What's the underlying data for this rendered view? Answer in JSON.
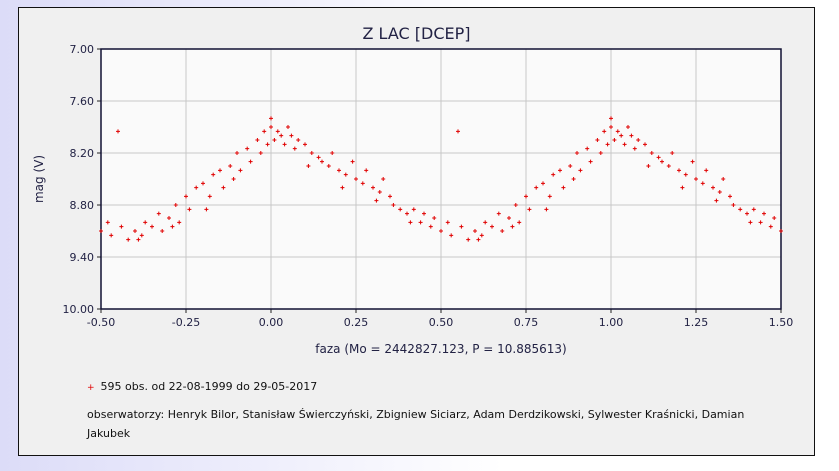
{
  "chart_data": {
    "type": "scatter",
    "title": "Z LAC [DCEP]",
    "xlabel": "faza (Mo = 2442827.123, P = 10.885613)",
    "ylabel": "mag (V)",
    "xlim": [
      -0.5,
      1.5
    ],
    "ylim": [
      10.0,
      7.0
    ],
    "y_inverted": true,
    "grid": true,
    "xticks": [
      "-0.50",
      "-0.25",
      "0.00",
      "0.25",
      "0.50",
      "0.75",
      "1.00",
      "1.25",
      "1.50"
    ],
    "yticks": [
      "7.00",
      "7.60",
      "8.20",
      "8.80",
      "9.40",
      "10.00"
    ],
    "marker_color": "#e00000",
    "points": [
      [
        0.0,
        7.8
      ],
      [
        0.0,
        7.9
      ],
      [
        0.02,
        7.95
      ],
      [
        0.03,
        8.0
      ],
      [
        0.01,
        8.05
      ],
      [
        0.04,
        8.1
      ],
      [
        0.05,
        7.9
      ],
      [
        0.06,
        8.0
      ],
      [
        0.08,
        8.05
      ],
      [
        0.07,
        8.15
      ],
      [
        0.1,
        8.1
      ],
      [
        0.12,
        8.2
      ],
      [
        0.14,
        8.25
      ],
      [
        0.15,
        8.3
      ],
      [
        0.17,
        8.35
      ],
      [
        0.18,
        8.2
      ],
      [
        0.2,
        8.4
      ],
      [
        0.22,
        8.45
      ],
      [
        0.24,
        8.3
      ],
      [
        0.25,
        8.5
      ],
      [
        0.27,
        8.55
      ],
      [
        0.28,
        8.4
      ],
      [
        0.3,
        8.6
      ],
      [
        0.32,
        8.65
      ],
      [
        0.33,
        8.5
      ],
      [
        0.35,
        8.7
      ],
      [
        0.36,
        8.8
      ],
      [
        0.38,
        8.85
      ],
      [
        0.4,
        8.9
      ],
      [
        0.42,
        8.85
      ],
      [
        0.44,
        9.0
      ],
      [
        0.45,
        8.9
      ],
      [
        0.47,
        9.05
      ],
      [
        0.48,
        8.95
      ],
      [
        0.5,
        9.1
      ],
      [
        0.52,
        9.0
      ],
      [
        0.53,
        9.15
      ],
      [
        0.55,
        7.95
      ],
      [
        0.56,
        9.05
      ],
      [
        0.58,
        9.2
      ],
      [
        0.6,
        9.1
      ],
      [
        0.62,
        9.15
      ],
      [
        0.63,
        9.0
      ],
      [
        0.65,
        9.05
      ],
      [
        0.67,
        8.9
      ],
      [
        0.68,
        9.1
      ],
      [
        0.7,
        8.95
      ],
      [
        0.72,
        8.8
      ],
      [
        0.73,
        9.0
      ],
      [
        0.75,
        8.7
      ],
      [
        0.76,
        8.85
      ],
      [
        0.78,
        8.6
      ],
      [
        0.8,
        8.55
      ],
      [
        0.82,
        8.7
      ],
      [
        0.83,
        8.45
      ],
      [
        0.85,
        8.4
      ],
      [
        0.86,
        8.6
      ],
      [
        0.88,
        8.35
      ],
      [
        0.9,
        8.2
      ],
      [
        0.91,
        8.4
      ],
      [
        0.93,
        8.15
      ],
      [
        0.94,
        8.3
      ],
      [
        0.96,
        8.05
      ],
      [
        0.97,
        8.2
      ],
      [
        0.98,
        7.95
      ],
      [
        0.99,
        8.1
      ],
      [
        0.11,
        8.35
      ],
      [
        0.21,
        8.6
      ],
      [
        0.31,
        8.75
      ],
      [
        0.41,
        9.0
      ],
      [
        0.61,
        9.2
      ],
      [
        0.71,
        9.05
      ],
      [
        0.81,
        8.85
      ],
      [
        0.89,
        8.5
      ]
    ],
    "legend": {
      "series": "595 obs. od 22-08-1999 do 29-05-2017",
      "observers": "obserwatorzy: Henryk Bilor, Stanisław Świerczyński, Zbigniew Siciarz, Adam Derdzikowski, Sylwester Kraśnicki, Damian Jakubek"
    }
  }
}
